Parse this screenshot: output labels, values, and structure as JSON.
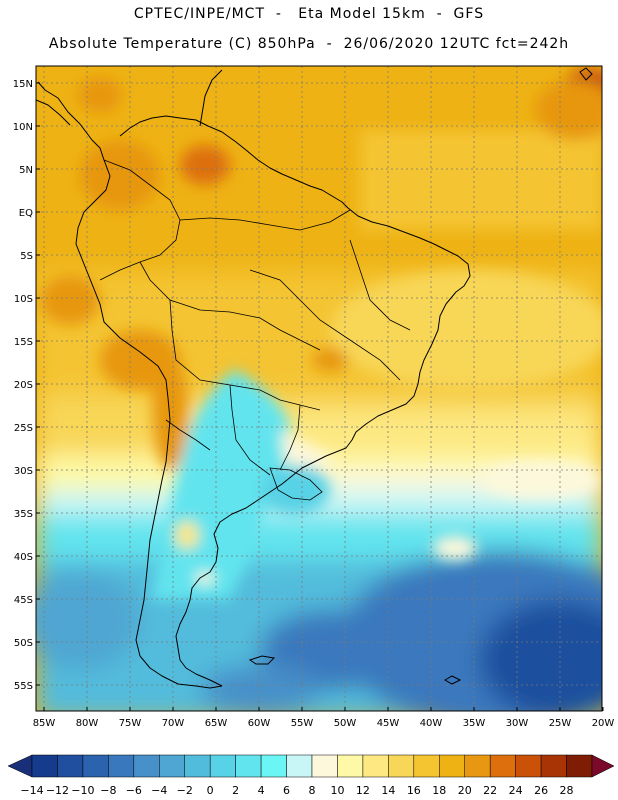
{
  "header": {
    "title_line1": "CPTEC/INPE/MCT  -   Eta Model 15km  -  GFS",
    "title_line2": "Absolute Temperature (C) 850hPa  -  26/06/2020 12UTC fct=242h"
  },
  "map": {
    "lat_labels": [
      "15N",
      "10N",
      "5N",
      "EQ",
      "5S",
      "10S",
      "15S",
      "20S",
      "25S",
      "30S",
      "35S",
      "40S",
      "45S",
      "50S",
      "55S"
    ],
    "lon_labels": [
      "85W",
      "80W",
      "75W",
      "70W",
      "65W",
      "60W",
      "55W",
      "50W",
      "45W",
      "40W",
      "35W",
      "30W",
      "25W",
      "20W"
    ],
    "lon_range": [
      -85,
      -20
    ],
    "lat_range": [
      17,
      -58
    ]
  },
  "legend": {
    "tick_labels": [
      "-14",
      "-12",
      "-10",
      "-8",
      "-6",
      "-4",
      "-2",
      "0",
      "2",
      "4",
      "6",
      "8",
      "10",
      "12",
      "14",
      "16",
      "18",
      "20",
      "22",
      "24",
      "26",
      "28"
    ],
    "bins": [
      {
        "value": -14,
        "color": "#143b8c"
      },
      {
        "value": -12,
        "color": "#1f4f9e"
      },
      {
        "value": -10,
        "color": "#2b63ae"
      },
      {
        "value": -8,
        "color": "#3a78bd"
      },
      {
        "value": -6,
        "color": "#4790c9"
      },
      {
        "value": -4,
        "color": "#4fa6d2"
      },
      {
        "value": -2,
        "color": "#52bcdc"
      },
      {
        "value": 0,
        "color": "#58d2e6"
      },
      {
        "value": 2,
        "color": "#62e4ee"
      },
      {
        "value": 4,
        "color": "#6cf5f5"
      },
      {
        "value": 6,
        "color": "#c8f6f6"
      },
      {
        "value": 8,
        "color": "#fdf8dc"
      },
      {
        "value": 10,
        "color": "#fef9a6"
      },
      {
        "value": 12,
        "color": "#fde882"
      },
      {
        "value": 14,
        "color": "#f8d657"
      },
      {
        "value": 16,
        "color": "#f4c431"
      },
      {
        "value": 18,
        "color": "#eeb214"
      },
      {
        "value": 20,
        "color": "#e79711"
      },
      {
        "value": 22,
        "color": "#dd6f0d"
      },
      {
        "value": 24,
        "color": "#c95108"
      },
      {
        "value": 26,
        "color": "#a83405"
      },
      {
        "value": 28,
        "color": "#7e1c04"
      }
    ],
    "min_arrow_color": "#1a2f7a",
    "max_arrow_color": "#7a0a2a"
  }
}
